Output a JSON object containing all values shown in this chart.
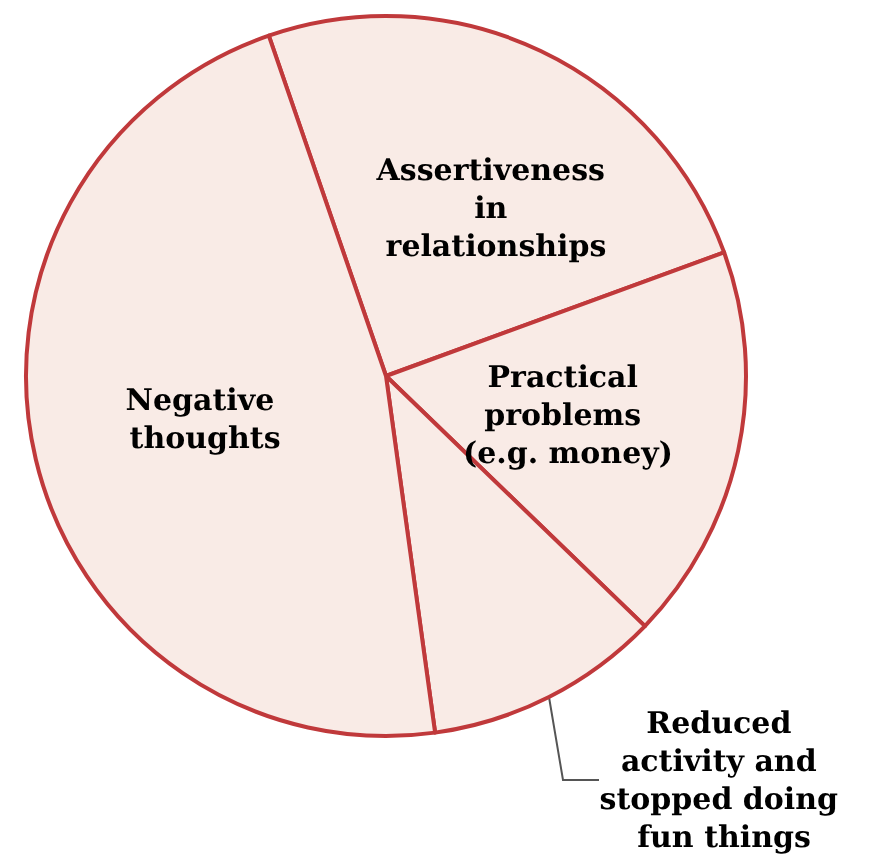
{
  "chart_data": {
    "type": "pie",
    "categories": [
      "Assertiveness in relationships",
      "Practical problems (e.g. money)",
      "Reduced activity and stopped doing fun things",
      "Negative thoughts"
    ],
    "values": [
      24.7,
      17.8,
      10.6,
      46.9
    ],
    "colors": [
      "#f9ebe6",
      "#f9ebe6",
      "#f9ebe6",
      "#f9ebe6"
    ],
    "legend": false
  }
}
